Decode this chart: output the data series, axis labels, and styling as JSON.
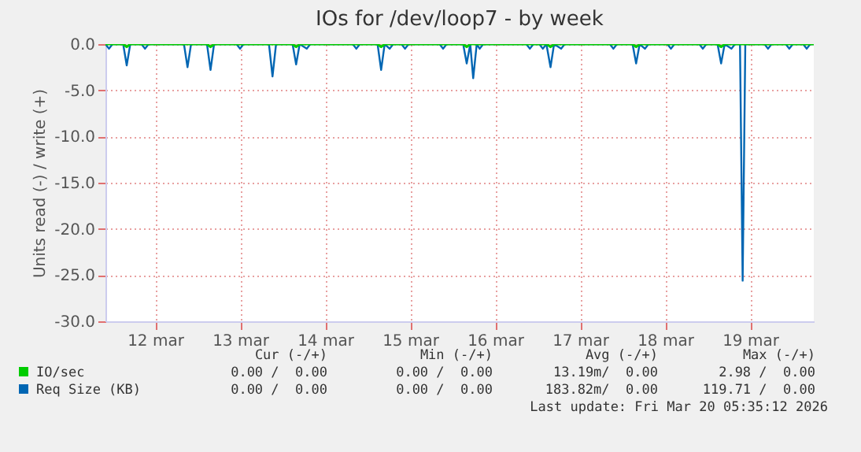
{
  "chart_data": {
    "type": "line",
    "title": "IOs for /dev/loop7 - by week",
    "ylabel": "Units read (-) / write (+)",
    "xlim": [
      "2026-03-11T22:00",
      "2026-03-20T06:00"
    ],
    "xticks": [
      {
        "value": "2026-03-12T12:00",
        "label": "12 mar"
      },
      {
        "value": "2026-03-13T12:00",
        "label": "13 mar"
      },
      {
        "value": "2026-03-14T12:00",
        "label": "14 mar"
      },
      {
        "value": "2026-03-15T12:00",
        "label": "15 mar"
      },
      {
        "value": "2026-03-16T12:00",
        "label": "16 mar"
      },
      {
        "value": "2026-03-17T12:00",
        "label": "17 mar"
      },
      {
        "value": "2026-03-18T12:00",
        "label": "18 mar"
      },
      {
        "value": "2026-03-19T12:00",
        "label": "19 mar"
      }
    ],
    "ylim": [
      -30,
      0
    ],
    "yticks": [
      {
        "value": -30,
        "label": "-30.0"
      },
      {
        "value": -25,
        "label": "-25.0"
      },
      {
        "value": -20,
        "label": "-20.0"
      },
      {
        "value": -15,
        "label": "-15.0"
      },
      {
        "value": -10,
        "label": "-10.0"
      },
      {
        "value": -5,
        "label": "-5.0"
      },
      {
        "value": 0,
        "label": "0.0"
      }
    ],
    "grid": true,
    "legend": "bottom",
    "marker": "none",
    "line_style": "solid",
    "series": [
      {
        "name": "IO/sec",
        "color": "#00cc00",
        "x": [
          "2026-03-11T22:00",
          "2026-03-12T03:00",
          "2026-03-12T04:00",
          "2026-03-12T05:00",
          "2026-03-13T02:40",
          "2026-03-13T03:40",
          "2026-03-13T04:40",
          "2026-03-14T02:50",
          "2026-03-14T03:50",
          "2026-03-14T04:50",
          "2026-03-15T02:50",
          "2026-03-15T03:50",
          "2026-03-15T04:50",
          "2026-03-16T03:00",
          "2026-03-16T04:00",
          "2026-03-16T05:00",
          "2026-03-17T02:40",
          "2026-03-17T03:40",
          "2026-03-17T04:40",
          "2026-03-18T02:50",
          "2026-03-18T03:50",
          "2026-03-18T04:50",
          "2026-03-19T02:50",
          "2026-03-19T03:50",
          "2026-03-19T04:50",
          "2026-03-20T06:00"
        ],
        "values": [
          0,
          0,
          -0.3,
          0,
          0,
          -0.3,
          0,
          0,
          -0.3,
          0,
          0,
          -0.3,
          0,
          0,
          -0.3,
          0,
          0,
          -0.3,
          0,
          0,
          -0.3,
          0,
          0,
          -0.3,
          0,
          0
        ]
      },
      {
        "name": "Req Size (KB)",
        "color": "#0066b3",
        "x": [
          "2026-03-11T22:00",
          "2026-03-11T23:00",
          "2026-03-12T00:00",
          "2026-03-12T03:00",
          "2026-03-12T04:00",
          "2026-03-12T05:00",
          "2026-03-12T08:10",
          "2026-03-12T09:10",
          "2026-03-12T10:10",
          "2026-03-12T20:10",
          "2026-03-12T21:10",
          "2026-03-12T22:10",
          "2026-03-13T02:40",
          "2026-03-13T03:40",
          "2026-03-13T04:40",
          "2026-03-13T11:00",
          "2026-03-13T12:00",
          "2026-03-13T13:00",
          "2026-03-13T20:10",
          "2026-03-13T21:10",
          "2026-03-13T22:10",
          "2026-03-14T02:50",
          "2026-03-14T03:50",
          "2026-03-14T04:50",
          "2026-03-14T06:50",
          "2026-03-14T07:50",
          "2026-03-14T19:50",
          "2026-03-14T20:50",
          "2026-03-14T21:50",
          "2026-03-15T02:50",
          "2026-03-15T03:50",
          "2026-03-15T04:50",
          "2026-03-15T06:15",
          "2026-03-15T07:15",
          "2026-03-15T09:35",
          "2026-03-15T10:35",
          "2026-03-15T11:35",
          "2026-03-15T20:20",
          "2026-03-15T21:20",
          "2026-03-15T22:20",
          "2026-03-16T03:00",
          "2026-03-16T04:00",
          "2026-03-16T05:00",
          "2026-03-16T05:50",
          "2026-03-16T06:50",
          "2026-03-16T07:40",
          "2026-03-16T08:40",
          "2026-03-16T20:50",
          "2026-03-16T21:50",
          "2026-03-16T22:50",
          "2026-03-17T00:30",
          "2026-03-17T01:30",
          "2026-03-17T02:30",
          "2026-03-17T03:40",
          "2026-03-17T04:40",
          "2026-03-17T06:40",
          "2026-03-17T07:40",
          "2026-03-17T20:25",
          "2026-03-17T21:25",
          "2026-03-17T22:25",
          "2026-03-18T02:50",
          "2026-03-18T03:50",
          "2026-03-18T04:50",
          "2026-03-18T06:20",
          "2026-03-18T07:20",
          "2026-03-18T12:40",
          "2026-03-18T13:40",
          "2026-03-18T14:40",
          "2026-03-18T21:40",
          "2026-03-18T22:40",
          "2026-03-18T23:40",
          "2026-03-19T02:50",
          "2026-03-19T03:50",
          "2026-03-19T04:50",
          "2026-03-19T06:45",
          "2026-03-19T07:45",
          "2026-03-19T09:10",
          "2026-03-19T09:55",
          "2026-03-19T10:40",
          "2026-03-19T16:05",
          "2026-03-19T17:05",
          "2026-03-19T18:05",
          "2026-03-19T22:05",
          "2026-03-19T23:05",
          "2026-03-20T00:05",
          "2026-03-20T03:00",
          "2026-03-20T04:00",
          "2026-03-20T05:00",
          "2026-03-20T06:00"
        ],
        "values": [
          0,
          -0.5,
          0,
          0,
          -2.3,
          0,
          0,
          -0.5,
          0,
          0,
          -2.5,
          0,
          0,
          -2.8,
          0,
          0,
          -0.5,
          0,
          0,
          -3.5,
          0,
          0,
          -2.2,
          0,
          -0.5,
          0,
          0,
          -0.5,
          0,
          0,
          -2.8,
          0,
          -0.5,
          0,
          0,
          -0.5,
          0,
          0,
          -0.5,
          0,
          0,
          -2.1,
          0,
          -3.7,
          0,
          -0.5,
          0,
          0,
          -0.5,
          0,
          0,
          -0.5,
          0,
          -2.5,
          0,
          -0.5,
          0,
          0,
          -0.5,
          0,
          0,
          -2.1,
          0,
          -0.5,
          0,
          0,
          -0.5,
          0,
          0,
          -0.5,
          0,
          0,
          -2.1,
          0,
          -0.5,
          0,
          0,
          -25.6,
          0,
          0,
          -0.5,
          0,
          0,
          -0.5,
          0,
          0,
          -0.5,
          0,
          0
        ]
      }
    ],
    "annotations": [
      "Cur (-/+)",
      "Min (-/+)",
      "Avg (-/+)",
      "Max (-/+)",
      "0.00 /  0.00",
      "0.00 /  0.00",
      "13.19m/  0.00",
      "2.98 /  0.00",
      "0.00 /  0.00",
      "0.00 /  0.00",
      "183.82m/  0.00",
      "119.71 /  0.00",
      "Last update: Fri Mar 20 05:35:12 2026"
    ]
  }
}
